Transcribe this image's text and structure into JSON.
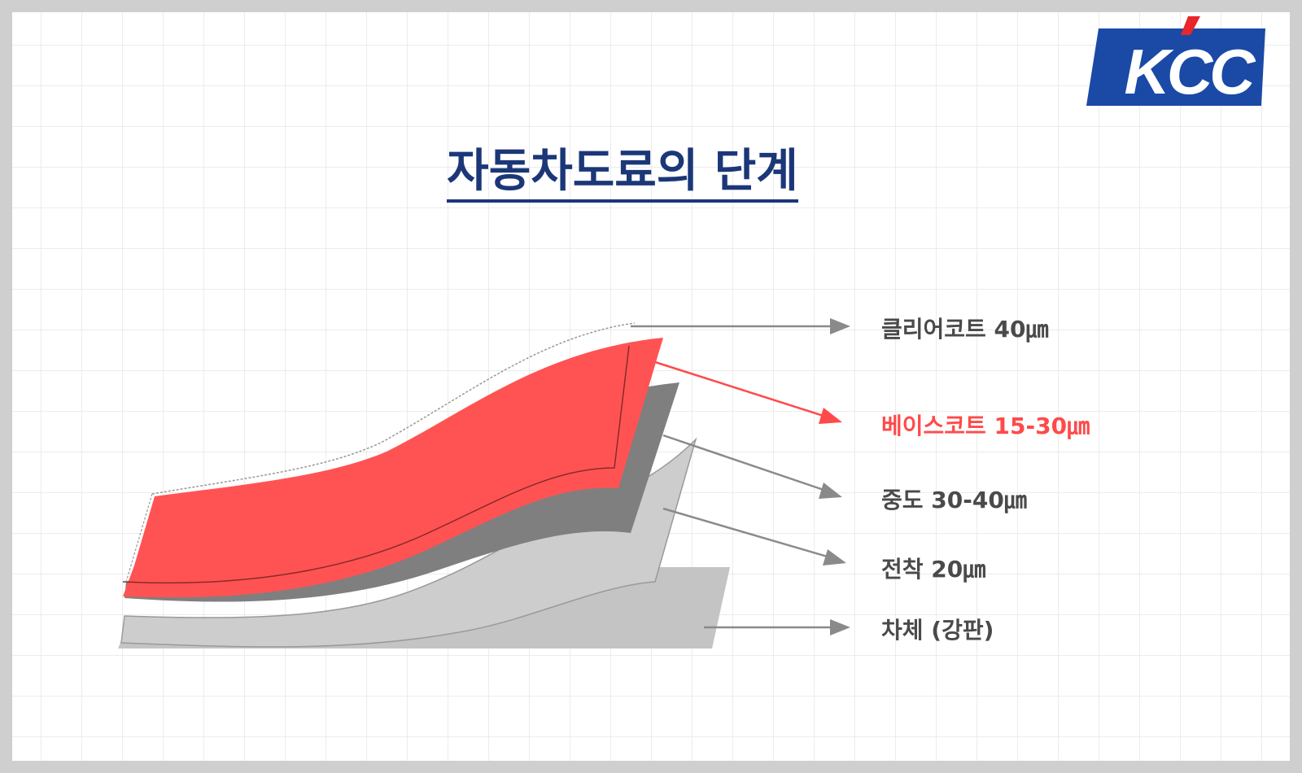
{
  "header": {
    "title": "자동차도료의 단계",
    "logo": "KCC"
  },
  "layers": [
    {
      "label": "클리어코트 40㎛"
    },
    {
      "label": "베이스코트 15-30㎛"
    },
    {
      "label": "중도 30-40㎛"
    },
    {
      "label": "전착 20㎛"
    },
    {
      "label": "차체 (강판)"
    }
  ]
}
